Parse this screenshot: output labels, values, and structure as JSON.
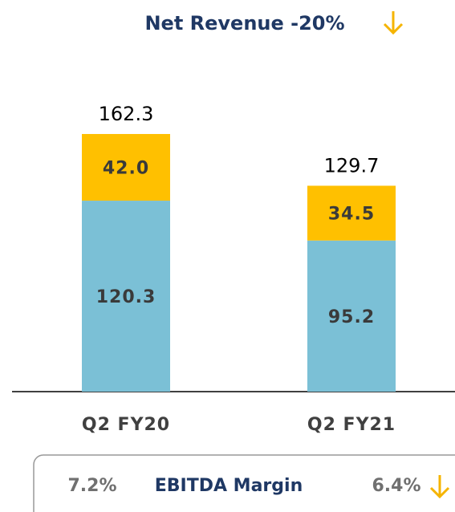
{
  "chart_data": {
    "type": "stacked-bar",
    "title": "Net Revenue -20%",
    "categories": [
      "Q2 FY20",
      "Q2 FY21"
    ],
    "series": [
      {
        "color": "#7bc0d6",
        "values": [
          120.3,
          95.2
        ]
      },
      {
        "color": "#ffc000",
        "values": [
          42.0,
          34.5
        ],
        "value_labels": [
          "42.0",
          "34.5"
        ]
      }
    ],
    "totals": [
      162.3,
      129.7
    ],
    "footer": {
      "left": "7.2%",
      "label": "EBITDA Margin",
      "right": "6.4%"
    }
  }
}
